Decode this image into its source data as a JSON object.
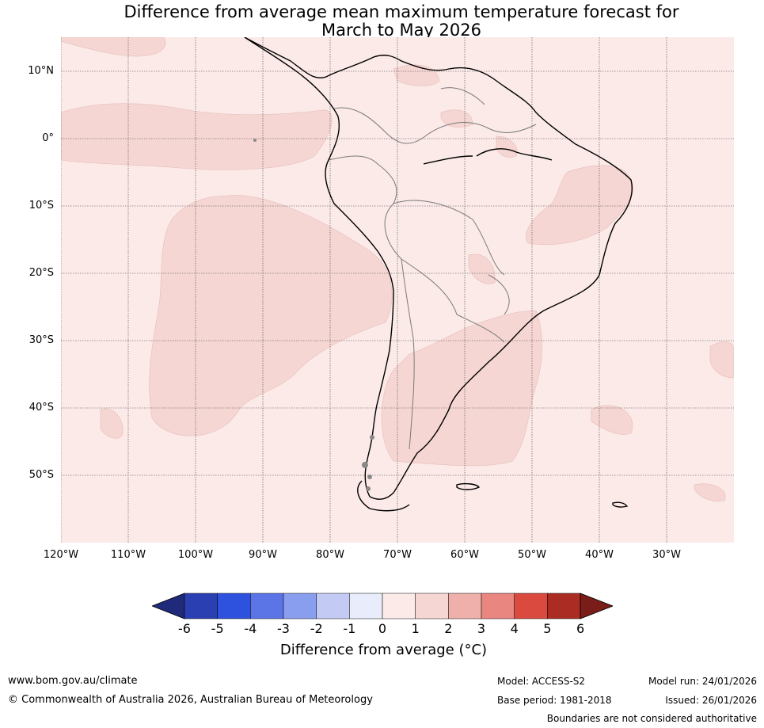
{
  "title": {
    "line1": "Difference from average mean maximum temperature forecast for",
    "line2": "March to May 2026"
  },
  "map": {
    "lat_labels": [
      "10°N",
      "0°",
      "10°S",
      "20°S",
      "30°S",
      "40°S",
      "50°S"
    ],
    "lon_labels": [
      "120°W",
      "110°W",
      "100°W",
      "90°W",
      "80°W",
      "70°W",
      "60°W",
      "50°W",
      "40°W",
      "30°W"
    ],
    "colors": {
      "background_0_to_1": "#fbeae8",
      "anomaly_1_to_2": "#f5d6d3",
      "coast": "#000000",
      "borders": "#777777"
    }
  },
  "colorbar": {
    "ticks": [
      "-6",
      "-5",
      "-4",
      "-3",
      "-2",
      "-1",
      "0",
      "1",
      "2",
      "3",
      "4",
      "5",
      "6"
    ],
    "colors": [
      "#1f2b7a",
      "#2a3fb2",
      "#2f52de",
      "#5c75e6",
      "#8a9ef0",
      "#c3cbf5",
      "#e9ecfb",
      "#fbeae8",
      "#f5d6d3",
      "#efb0ab",
      "#e8867f",
      "#da4a3e",
      "#ab2c22",
      "#7a1d19"
    ],
    "label": "Difference from average (°C)"
  },
  "footer": {
    "website": "www.bom.gov.au/climate",
    "copyright": "© Commonwealth of Australia 2026, Australian Bureau of Meteorology",
    "model": "Model: ACCESS-S2",
    "base_period": "Base period: 1981-2018",
    "model_run": "Model run: 24/01/2026",
    "issued": "Issued: 26/01/2026",
    "disclaimer": "Boundaries are not considered authoritative"
  }
}
